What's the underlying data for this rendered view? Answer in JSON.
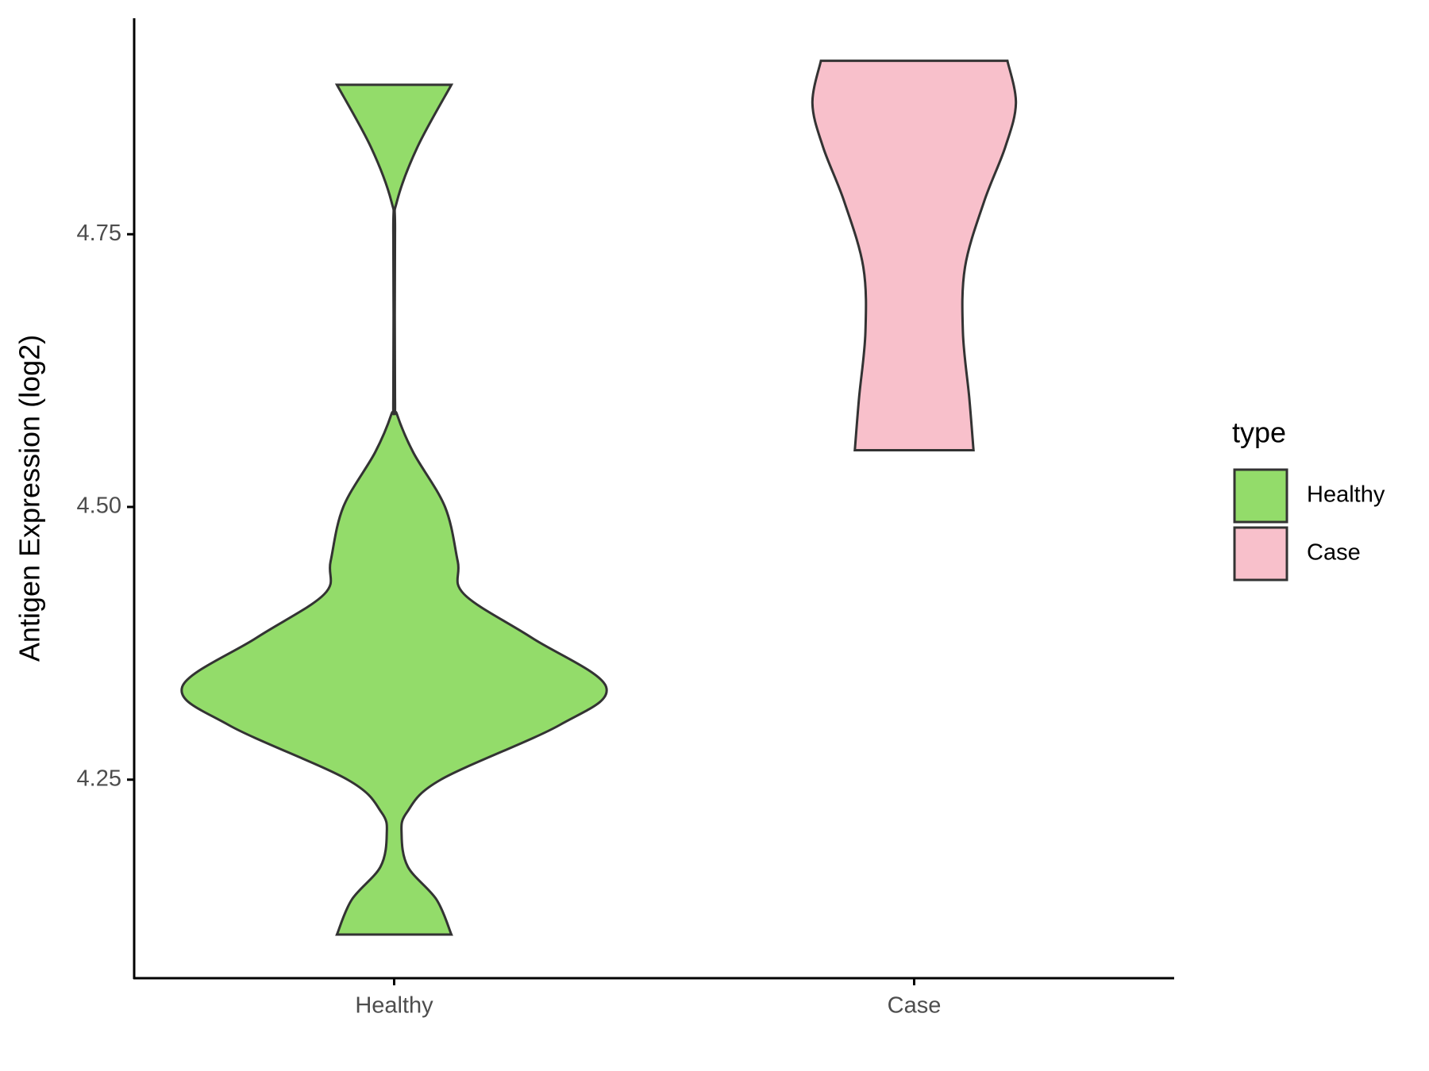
{
  "chart_data": {
    "type": "violin",
    "y_label": "Antigen Expression (log2)",
    "categories": [
      "Healthy",
      "Case"
    ],
    "legend_title": "type",
    "ylim": [
      4.068,
      4.948
    ],
    "yticks": [
      {
        "value": 4.25,
        "label": "4.25"
      },
      {
        "value": 4.5,
        "label": "4.50"
      },
      {
        "value": 4.75,
        "label": "4.75"
      }
    ],
    "grid": false,
    "series": [
      {
        "name": "Healthy",
        "color": "#93dc6a",
        "profile_y": [
          4.108,
          4.14,
          4.17,
          4.2,
          4.22,
          4.25,
          4.3,
          4.335,
          4.38,
          4.42,
          4.45,
          4.5,
          4.55,
          4.585,
          4.6,
          4.75,
          4.78,
          4.83,
          4.887
        ],
        "profile_width": [
          0.27,
          0.2,
          0.065,
          0.035,
          0.06,
          0.22,
          0.78,
          1,
          0.65,
          0.33,
          0.3,
          0.24,
          0.09,
          0.013,
          0.004,
          0.004,
          0.013,
          0.11,
          0.27
        ]
      },
      {
        "name": "Case",
        "color": "#f8c0cb",
        "profile_y": [
          4.552,
          4.6,
          4.66,
          4.72,
          4.78,
          4.83,
          4.87,
          4.909
        ],
        "profile_width": [
          0.28,
          0.26,
          0.23,
          0.24,
          0.33,
          0.43,
          0.48,
          0.44
        ]
      }
    ]
  }
}
